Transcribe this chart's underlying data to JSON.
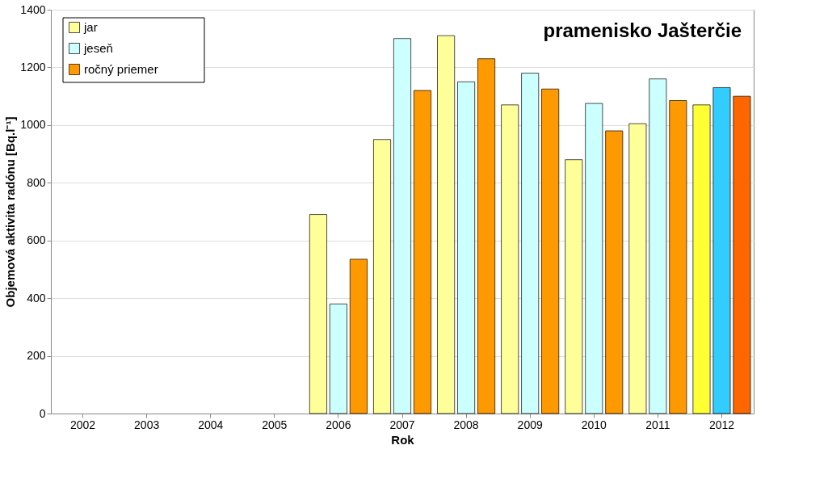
{
  "chart_data": {
    "type": "bar",
    "title": "pramenisko Jašterčie",
    "xlabel": "Rok",
    "ylabel": "Objemová aktivita radónu [Bq.l⁻¹]",
    "categories": [
      "2002",
      "2003",
      "2004",
      "2005",
      "2006",
      "2007",
      "2008",
      "2009",
      "2010",
      "2011",
      "2012"
    ],
    "series": [
      {
        "name": "jar",
        "color": "#ffff99",
        "colors": [
          "#ffff99",
          "#ffff99",
          "#ffff99",
          "#ffff99",
          "#ffff99",
          "#ffff99",
          "#ffff99",
          "#ffff99",
          "#ffff99",
          "#ffff99",
          "#ffff33"
        ],
        "values": [
          null,
          null,
          null,
          null,
          690,
          950,
          1310,
          1070,
          880,
          1005,
          1070
        ]
      },
      {
        "name": "jeseň",
        "color": "#ccffff",
        "colors": [
          "#ccffff",
          "#ccffff",
          "#ccffff",
          "#ccffff",
          "#ccffff",
          "#ccffff",
          "#ccffff",
          "#ccffff",
          "#ccffff",
          "#ccffff",
          "#33ccff"
        ],
        "values": [
          null,
          null,
          null,
          null,
          380,
          1300,
          1150,
          1180,
          1075,
          1160,
          1130
        ]
      },
      {
        "name": "ročný priemer",
        "color": "#ff9900",
        "colors": [
          "#ff9900",
          "#ff9900",
          "#ff9900",
          "#ff9900",
          "#ff9900",
          "#ff9900",
          "#ff9900",
          "#ff9900",
          "#ff9900",
          "#ff9900",
          "#ff6600"
        ],
        "values": [
          null,
          null,
          null,
          null,
          535,
          1120,
          1230,
          1125,
          980,
          1085,
          1100
        ]
      }
    ],
    "ylim": [
      0,
      1400
    ],
    "yticks": [
      0,
      200,
      400,
      600,
      800,
      1000,
      1200,
      1400
    ],
    "grid": "y",
    "legend": "top left"
  }
}
